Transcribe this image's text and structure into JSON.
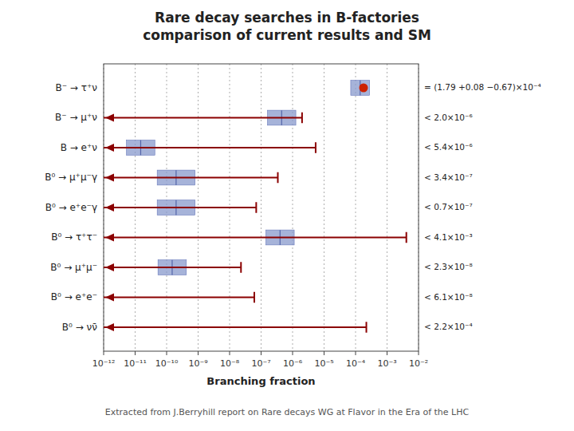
{
  "chart_data": {
    "type": "range",
    "title": "Rare decay searches in B-factories\ncomparison of current results and SM",
    "subtitle": "Extracted from J.Berryhill report on Rare decays WG at Flavor in the Era of the LHC",
    "x_label": "Branching fraction",
    "log": "x",
    "grid": true,
    "xlim": [
      1e-12,
      0.01
    ],
    "xticks": [
      {
        "value": 1e-12,
        "label": "10⁻¹²"
      },
      {
        "value": 1e-11,
        "label": "10⁻¹¹"
      },
      {
        "value": 1e-10,
        "label": "10⁻¹⁰"
      },
      {
        "value": 1e-09,
        "label": "10⁻⁹"
      },
      {
        "value": 1e-08,
        "label": "10⁻⁸"
      },
      {
        "value": 1e-07,
        "label": "10⁻⁷"
      },
      {
        "value": 1e-06,
        "label": "10⁻⁶"
      },
      {
        "value": 1e-05,
        "label": "10⁻⁵"
      },
      {
        "value": 0.0001,
        "label": "10⁻⁴"
      },
      {
        "value": 0.001,
        "label": "10⁻³"
      },
      {
        "value": 0.01,
        "label": "10⁻²"
      }
    ],
    "categories": [
      "B⁻ → τ⁺ν",
      "B⁻ → μ⁺ν",
      "B → e⁺ν",
      "B⁰ → μ⁺μ⁻γ",
      "B⁰ → e⁺e⁻γ",
      "B⁰ → τ⁺τ⁻",
      "B⁰ → μ⁺μ⁻",
      "B⁰ → e⁺e⁻",
      "B⁰ → νν̄"
    ],
    "series": [
      {
        "type": "scatter",
        "marker": "circle",
        "color": "#cc2200",
        "values": [
          0.000179,
          null,
          null,
          null,
          null,
          null,
          null,
          null,
          null
        ],
        "value_labels": [
          "= (1.79 +0.08 −0.67)×10⁻⁴",
          null,
          null,
          null,
          null,
          null,
          null,
          null,
          null
        ]
      },
      {
        "type": "limit",
        "color": "#8b0000",
        "values": [
          null,
          2e-06,
          5.4e-06,
          3.4e-07,
          7e-08,
          0.0041,
          2.3e-08,
          6.1e-08,
          0.00022
        ],
        "value_labels": [
          null,
          "< 2.0×10⁻⁶",
          "< 5.4×10⁻⁶",
          "< 3.4×10⁻⁷",
          "< 0.7×10⁻⁷",
          "< 4.1×10⁻³",
          "< 2.3×10⁻⁸",
          "< 6.1×10⁻⁸",
          "< 2.2×10⁻⁴"
        ]
      },
      {
        "type": "band",
        "color": "#8899cc",
        "values": [
          0.00014,
          4.5e-07,
          1.5e-11,
          2e-10,
          2e-10,
          4e-07,
          1.5e-10,
          null,
          null
        ],
        "log_half_width": [
          0.3,
          0.45,
          0.45,
          0.6,
          0.6,
          0.45,
          0.45,
          0.0,
          0.0
        ]
      }
    ]
  }
}
